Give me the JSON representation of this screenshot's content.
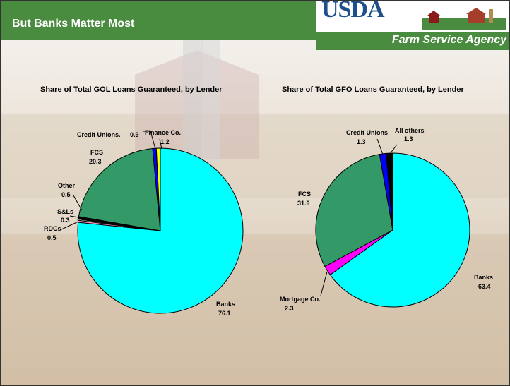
{
  "slide": {
    "title": "But Banks Matter Most"
  },
  "logo": {
    "wordmark": "USDA",
    "agency": "Farm Service Agency"
  },
  "chart_data": [
    {
      "type": "pie",
      "title": "Share of Total GOL Loans Guaranteed, by Lender",
      "slices": [
        {
          "name": "Banks",
          "value": 76.1,
          "color": "#00ffff"
        },
        {
          "name": "RDCs",
          "value": 0.5,
          "color": "#ff99cc"
        },
        {
          "name": "S&Ls",
          "value": 0.3,
          "color": "#ffffff"
        },
        {
          "name": "Other",
          "value": 0.5,
          "color": "#000000"
        },
        {
          "name": "FCS",
          "value": 20.3,
          "color": "#339966"
        },
        {
          "name": "Credit Unions.",
          "value": 0.9,
          "color": "#0000ff"
        },
        {
          "name": "Finance Co.",
          "value": 1.2,
          "color": "#ffff00"
        }
      ]
    },
    {
      "type": "pie",
      "title": "Share of Total GFO Loans Guaranteed, by Lender",
      "slices": [
        {
          "name": "Banks",
          "value": 63.4,
          "color": "#00ffff"
        },
        {
          "name": "Mortgage Co.",
          "value": 2.3,
          "color": "#ff00ff"
        },
        {
          "name": "FCS",
          "value": 31.9,
          "color": "#339966"
        },
        {
          "name": "Credit Unions",
          "value": 1.3,
          "color": "#0000ff"
        },
        {
          "name": "All others",
          "value": 1.3,
          "color": "#000000"
        }
      ]
    }
  ]
}
